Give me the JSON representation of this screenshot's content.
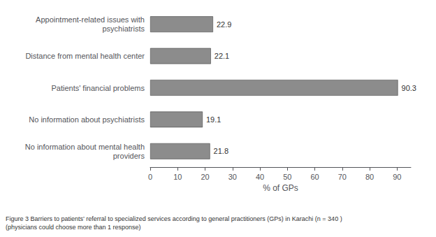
{
  "chart_data": {
    "type": "bar",
    "orientation": "horizontal",
    "categories": [
      "No information about mental health\nproviders",
      "No information about psychiatrists",
      "Patients' financial problems",
      "Distance from mental health center",
      "Appointment-related issues with\npsychiatrists"
    ],
    "values": [
      21.8,
      19.1,
      90.3,
      22.1,
      22.9
    ],
    "color": "#8c8c8c",
    "xlabel": "% of GPs",
    "xlim": [
      0,
      95
    ],
    "xticks": [
      0,
      10,
      20,
      30,
      40,
      50,
      60,
      70,
      80,
      90
    ],
    "grid": false,
    "data_labels": true,
    "annotations": [
      "Figure 3 Barriers to patients’ referral to specialized services according to general practitioners (GPs) in Karachi (n = 340 )",
      "(physicians could choose more than 1 response)"
    ]
  }
}
